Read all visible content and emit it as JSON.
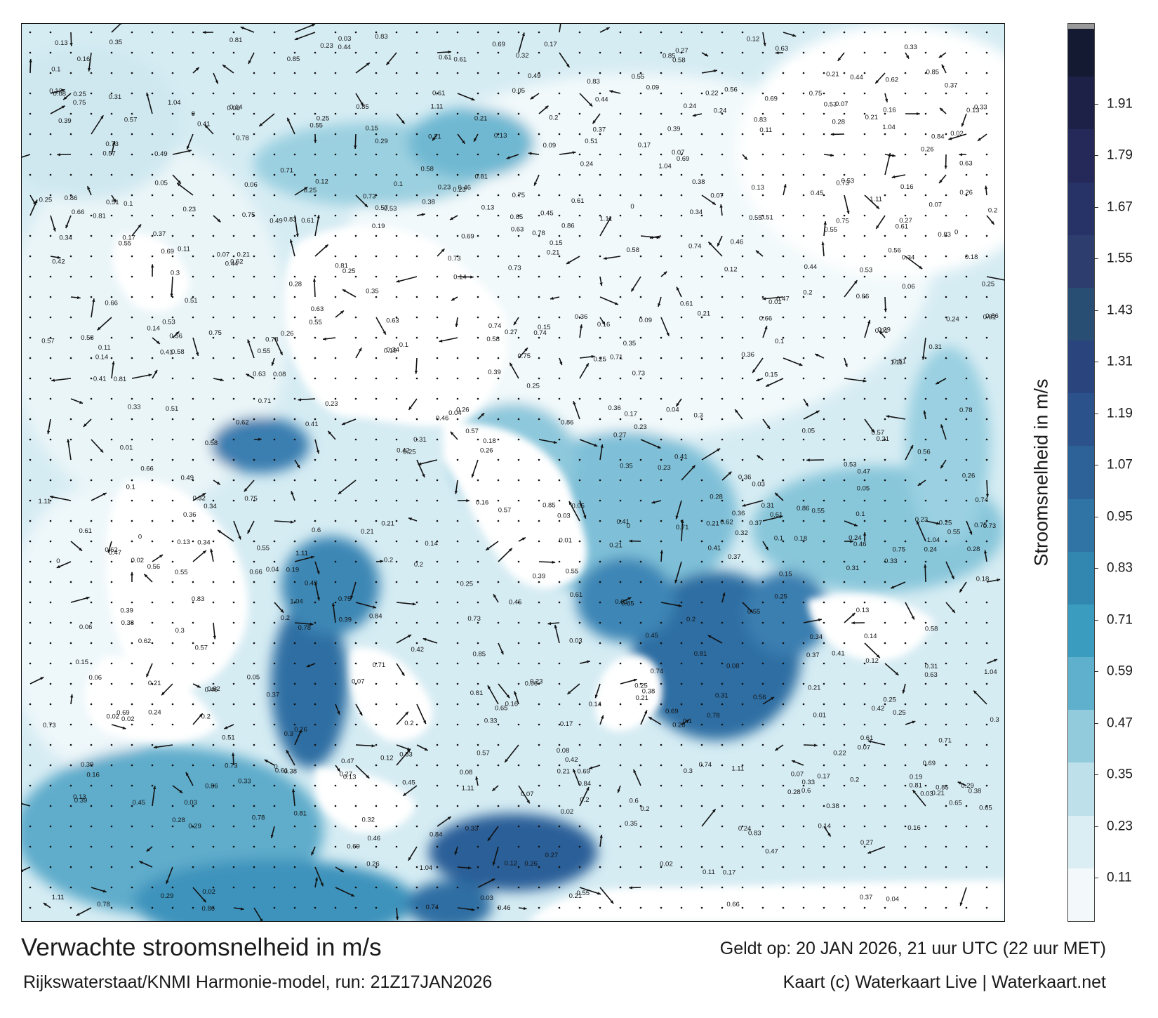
{
  "map": {
    "title": "Verwachte stroomsnelheid in m/s",
    "subtitle": "Rijkswaterstaat/KNMI Harmonie-model, run: 21Z17JAN2026",
    "valid_time": "Geldt op: 20 JAN 2026, 21 uur UTC (22 uur MET)",
    "credit": "Kaart (c) Waterkaart Live | Waterkaart.net",
    "land_color": "#ffffff",
    "sample_labels": [
      "0.16",
      "0.15",
      "0.14",
      "0.13",
      "0.12",
      "0.17",
      "0.18",
      "0.29",
      "0.25",
      "0.21",
      "0.23",
      "0.22",
      "0.19",
      "0.2",
      "0.25",
      "0.21",
      "0.27",
      "0.41",
      "0.42",
      "0.44",
      "0.34",
      "0.26",
      "0.49",
      "0.47",
      "0.45",
      "0.31",
      "0.36",
      "0.46",
      "0.33",
      "0.28",
      "0.58",
      "0.75",
      "0.69",
      "0.84",
      "0.81",
      "0.73",
      "0.62",
      "0.74",
      "0.71",
      "0.66",
      "0.65",
      "0.55",
      "0.86",
      "0.83",
      "0.78",
      "1.11",
      "1.04",
      "0.85",
      "0.63",
      "0.57",
      "0.56",
      "0.6",
      "0.61",
      "0.53",
      "0.51",
      "0.39",
      "0.38",
      "0.37",
      "0.35",
      "0.32",
      "0.3",
      "0.24",
      "0.11",
      "0.1",
      "0.09",
      "0.08",
      "0.07",
      "0.06",
      "0.05",
      "0.04",
      "0.03",
      "0.02",
      "0.01",
      "0"
    ]
  },
  "colorbar": {
    "label": "Stroomsnelheid in m/s",
    "ticks": [
      "0.11",
      "0.23",
      "0.35",
      "0.47",
      "0.59",
      "0.71",
      "0.83",
      "0.95",
      "1.07",
      "1.19",
      "1.31",
      "1.43",
      "1.55",
      "1.67",
      "1.79",
      "1.91"
    ],
    "band_colors": [
      "#f3f9fb",
      "#dbeef3",
      "#bde0ea",
      "#92cbdc",
      "#5fb0cc",
      "#3a9cbe",
      "#3187b0",
      "#2f74a4",
      "#2d6298",
      "#2b528b",
      "#2a457e",
      "#284e73",
      "#2c3d6e",
      "#273366",
      "#24295a",
      "#1e2147",
      "#151a33"
    ],
    "top_color": "#9a9a9a"
  }
}
